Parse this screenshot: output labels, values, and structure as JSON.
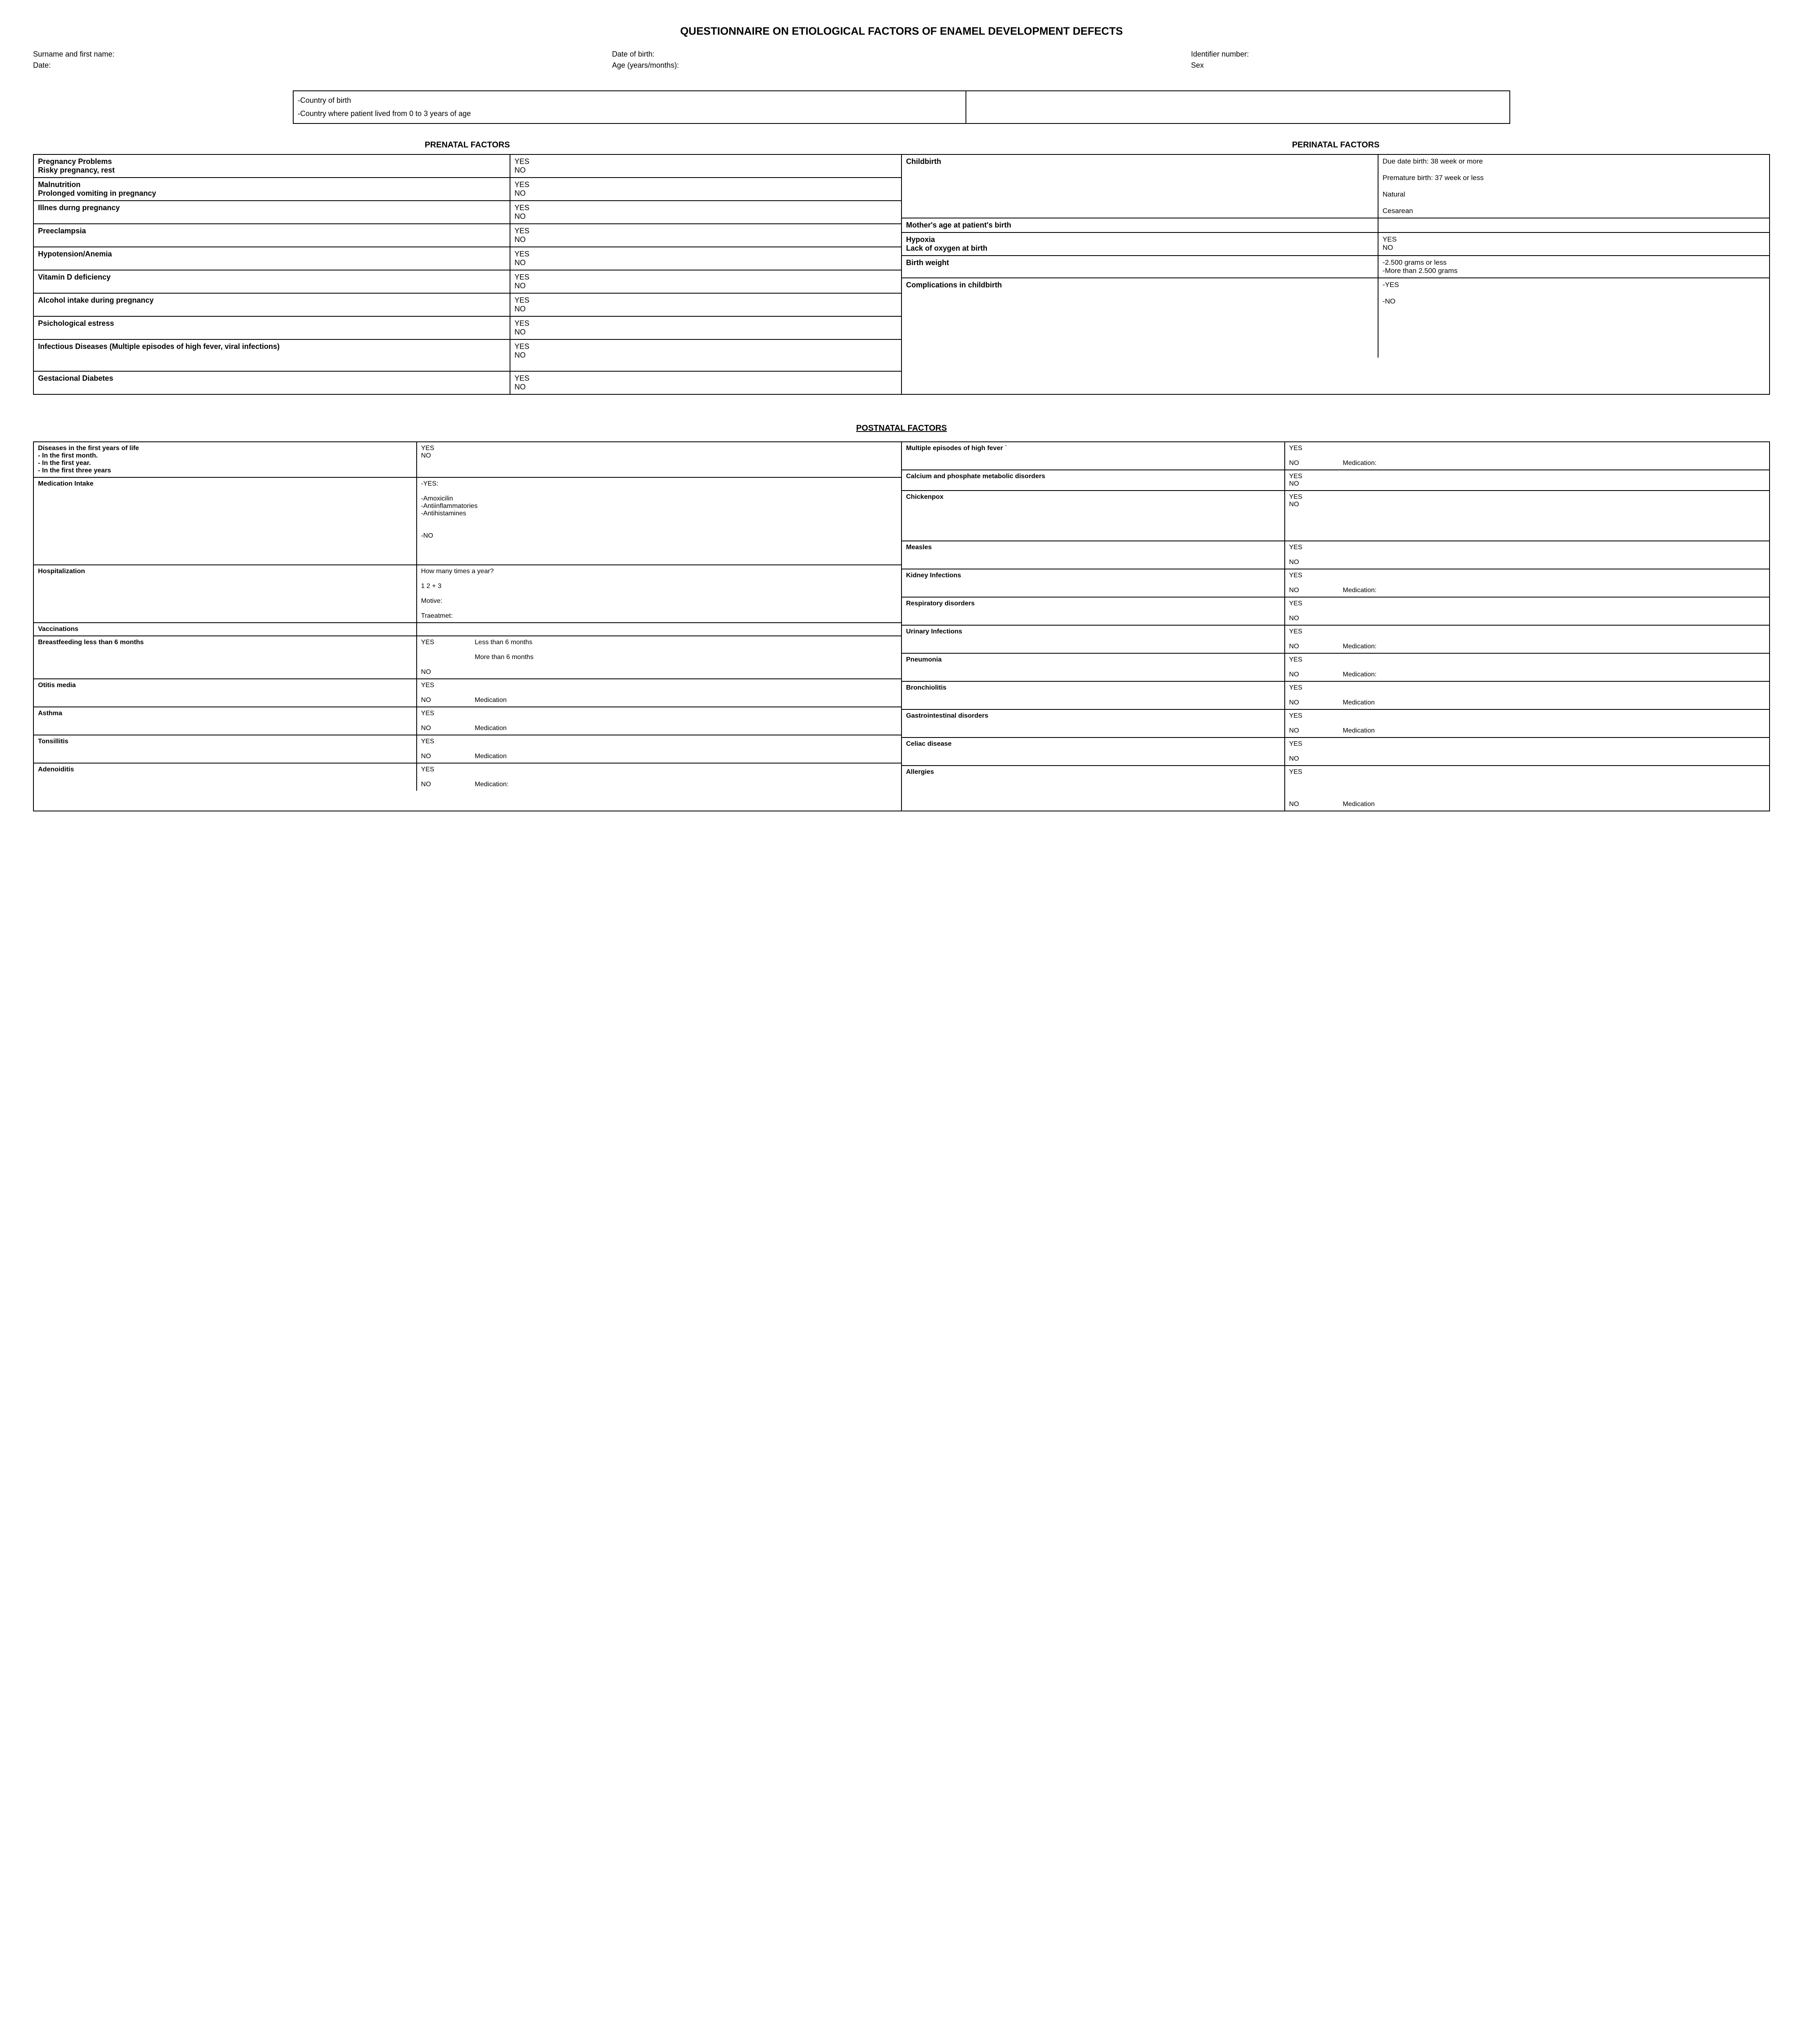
{
  "title": "QUESTIONNAIRE ON ETIOLOGICAL FACTORS OF ENAMEL DEVELOPMENT DEFECTS",
  "header": {
    "surname": "Surname and first name:",
    "date": "Date:",
    "dob": "Date of birth:",
    "age": "Age (years/months):",
    "idnum": "Identifier number:",
    "sex": "Sex"
  },
  "country": {
    "line1": "-Country of birth",
    "line2": "-Country where patient lived from 0 to 3 years of age"
  },
  "section_titles": {
    "prenatal": "PRENATAL FACTORS",
    "perinatal": "PERINATAL FACTORS",
    "postnatal": "POSTNATAL FACTORS"
  },
  "prenatal": [
    {
      "label": "Pregnancy Problems\nRisky pregnancy, rest",
      "val": "YES\nNO"
    },
    {
      "label": "Malnutrition\nProlonged vomiting in pregnancy",
      "val": "YES\nNO"
    },
    {
      "label": "Illnes durng pregnancy",
      "val": "YES\nNO"
    },
    {
      "label": "Preeclampsia",
      "val": "YES\nNO"
    },
    {
      "label": "Hypotension/Anemia",
      "val": "YES\nNO"
    },
    {
      "label": "Vitamin D deficiency",
      "val": "YES\nNO"
    },
    {
      "label": "Alcohol intake during pregnancy",
      "val": "YES\nNO"
    },
    {
      "label": "Psichological estress",
      "val": "YES\nNO"
    },
    {
      "label": "Infectious Diseases (Multiple episodes of high fever, viral infections)",
      "val": "YES\nNO\n\n "
    },
    {
      "label": "Gestacional Diabetes",
      "val": "YES\nNO\n "
    }
  ],
  "perinatal": [
    {
      "label": "Childbirth",
      "val": "Due date birth:          38 week or more\n\nPremature birth:       37 week or less\n\nNatural\n\nCesarean"
    },
    {
      "label": "Mother's age at patient's birth",
      "val": " "
    },
    {
      "label": " Hypoxia\n Lack of oxygen at birth",
      "val": "YES\nNO"
    },
    {
      "label": "Birth weight",
      "val": "-2.500 grams or less\n-More than 2.500 grams"
    },
    {
      "label": "Complications in childbirth",
      "val": "-YES\n\n-NO\n\n\n\n\n\n\n "
    }
  ],
  "postnatal_left": [
    {
      "label": "Diseases in the first years of life\n- In the first month.\n- In the first year.\n- In the first three years",
      "val": "YES\nNO\n\n "
    },
    {
      "label": "Medication Intake",
      "val": "-YES:\n\n-Amoxicilin\n-Antiinflammatories\n-Antihistamines\n\n\n-NO\n\n\n\n "
    },
    {
      "label": "Hospitalization",
      "val": "How many times a year?\n\n                         1            2           + 3\n\nMotive:\n\nTraeatmet:"
    },
    {
      "label": "Vaccinations",
      "val": " "
    },
    {
      "label": "Breastfeeding less than 6 months",
      "val_yes": "YES",
      "val_extra1": "Less than 6 months",
      "val_extra2": "More than 6 months",
      "val_no": "NO"
    },
    {
      "label": "Otitis media",
      "val_yes": "YES",
      "val_no": "NO",
      "med": "Medication"
    },
    {
      "label": "Asthma",
      "val_yes": "YES",
      "val_no": "NO",
      "med": "Medication"
    },
    {
      "label": "Tonsillitis",
      "val_yes": "YES",
      "val_no": "NO",
      "med": "Medication"
    },
    {
      "label": "Adenoiditis",
      "val_yes": "YES",
      "val_no": "NO",
      "med": "Medication:"
    }
  ],
  "postnatal_right": [
    {
      "label": "Multiple episodes of high fever ˙",
      "val_yes": "YES",
      "val_no": "NO",
      "med": "Medication:"
    },
    {
      "label": "Calcium and phosphate metabolic disorders",
      "val": "YES\nNO"
    },
    {
      "label": "Chickenpox",
      "val": "YES\nNO\n\n\n\n\n "
    },
    {
      "label": "Measles",
      "val": "YES\n\nNO"
    },
    {
      "label": "Kidney Infections",
      "val_yes": "YES",
      "val_no": "NO",
      "med": "Medication:"
    },
    {
      "label": "Respiratory disorders",
      "val": "YES\n\nNO"
    },
    {
      "label": "Urinary Infections",
      "val_yes": "YES",
      "val_no": "NO",
      "med": "Medication:"
    },
    {
      "label": "Pneumonia",
      "val_yes": "YES",
      "val_no": "NO",
      "med": "Medication:"
    },
    {
      "label": "Bronchiolitis",
      "val_yes": "YES",
      "val_no": "NO",
      "med": "Medication"
    },
    {
      "label": "Gastrointestinal disorders",
      "val_yes": "YES",
      "val_no": "NO",
      "med": "Medication"
    },
    {
      "label": "Celiac disease",
      "val": "YES\n\nNO"
    },
    {
      "label": "Allergies",
      "val_yes": "YES",
      "val_no": "NO",
      "med": "Medication",
      "tall": true
    }
  ]
}
